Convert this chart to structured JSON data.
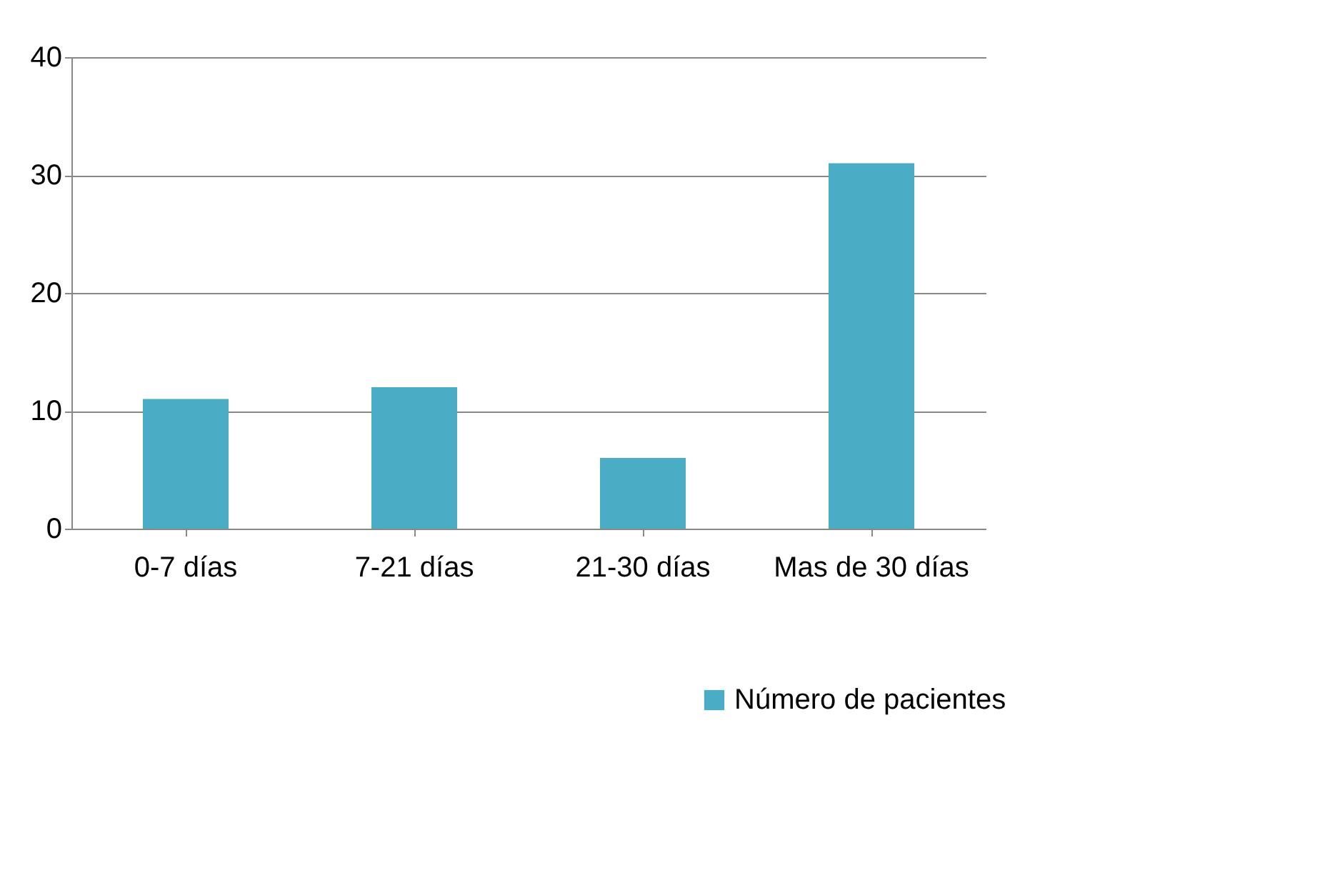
{
  "chart_data": {
    "type": "bar",
    "categories": [
      "0-7 días",
      "7-21 días",
      "21-30 días",
      "Mas de 30 días"
    ],
    "series": [
      {
        "name": "Número de pacientes",
        "color": "#4bacc6",
        "values": [
          11,
          12,
          6,
          31
        ]
      }
    ],
    "ylim": [
      0,
      40
    ],
    "yticks": [
      0,
      10,
      20,
      30,
      40
    ],
    "grid": "y",
    "legend": "bottom right"
  }
}
